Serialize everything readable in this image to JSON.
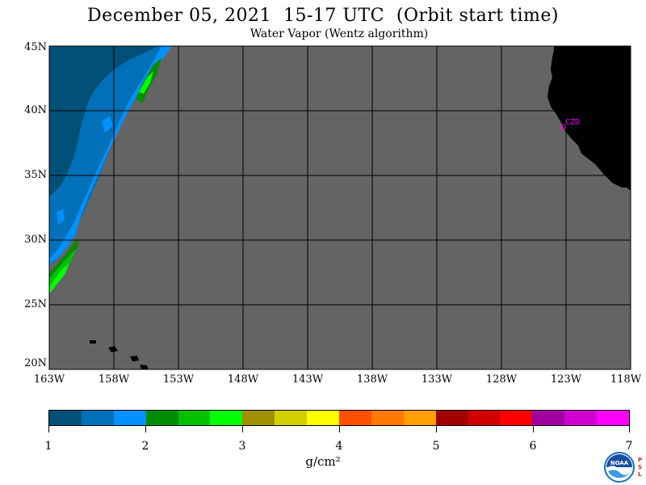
{
  "title": "December 05, 2021  15-17 UTC  (Orbit start time)",
  "subtitle": "Water Vapor (Wentz algorithm)",
  "lat_labels": [
    "45N",
    "40N",
    "35N",
    "30N",
    "25N",
    "20N"
  ],
  "lon_labels": [
    "163W",
    "158W",
    "153W",
    "148W",
    "143W",
    "138W",
    "133W",
    "128W",
    "123W",
    "118W"
  ],
  "station_label": "CZD",
  "colorbar": {
    "labels": [
      "1",
      "2",
      "3",
      "4",
      "5",
      "6",
      "7"
    ],
    "unit": "g/cm²",
    "colors": [
      "#005078",
      "#0070b8",
      "#0090ff",
      "#008c00",
      "#00c000",
      "#00ff00",
      "#a09000",
      "#d0d000",
      "#ffff00",
      "#ff5000",
      "#ff7800",
      "#ffa000",
      "#a00000",
      "#d00000",
      "#ff0000",
      "#a000a0",
      "#d000d0",
      "#ff00ff"
    ]
  },
  "logo": {
    "text": "NOAA",
    "side_text": "PSL"
  }
}
